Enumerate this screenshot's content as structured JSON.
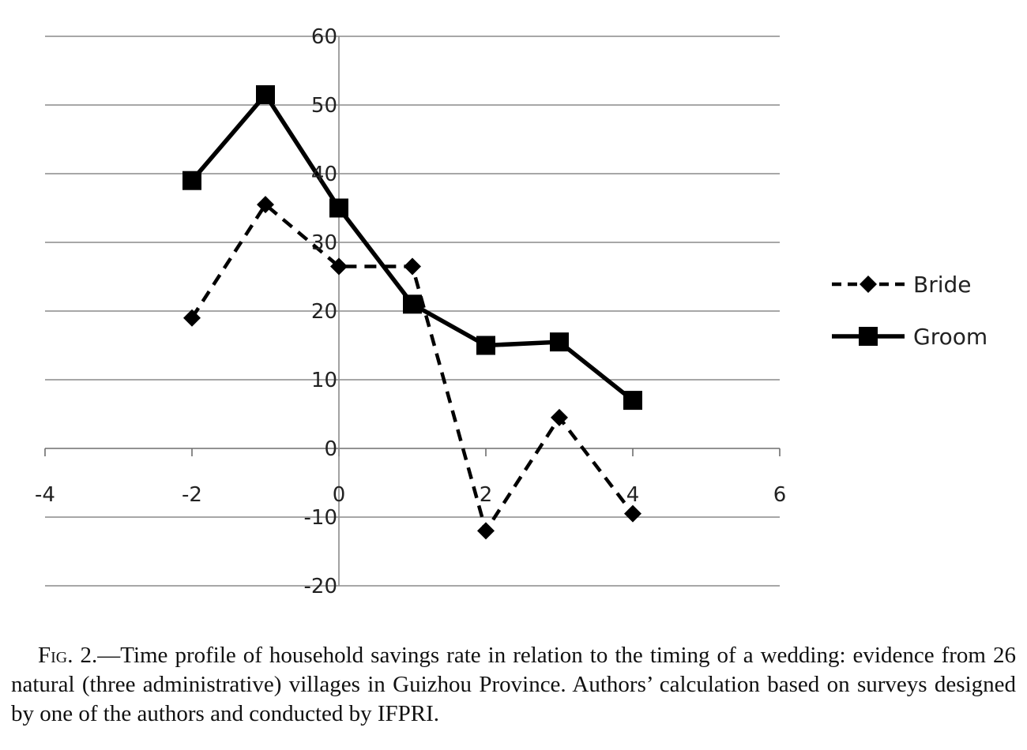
{
  "chart_data": {
    "type": "line",
    "xlim": [
      -4,
      6
    ],
    "ylim": [
      -20,
      60
    ],
    "x_ticks": [
      -4,
      -2,
      0,
      2,
      4,
      6
    ],
    "y_ticks": [
      -20,
      -10,
      0,
      10,
      20,
      30,
      40,
      50,
      60
    ],
    "grid": "horizontal",
    "legend_position": "right",
    "series": [
      {
        "name": "Bride",
        "style": "dashed",
        "marker": "diamond",
        "color": "#000000",
        "x": [
          -2,
          -1,
          0,
          1,
          2,
          3,
          4
        ],
        "y": [
          19,
          35.5,
          26.5,
          26.5,
          -12,
          4.5,
          -9.5
        ]
      },
      {
        "name": "Groom",
        "style": "solid",
        "marker": "square",
        "color": "#000000",
        "x": [
          -2,
          -1,
          0,
          1,
          2,
          3,
          4
        ],
        "y": [
          39,
          51.5,
          35,
          21,
          15,
          15.5,
          7
        ]
      }
    ]
  },
  "caption": {
    "label": "Fig. 2.",
    "text": "—Time profile of household savings rate in relation to the timing of a wedding: evidence from 26 natural (three administrative) villages in Guizhou Province. Authors’ calculation based on surveys designed by one of the authors and conducted by IFPRI."
  }
}
